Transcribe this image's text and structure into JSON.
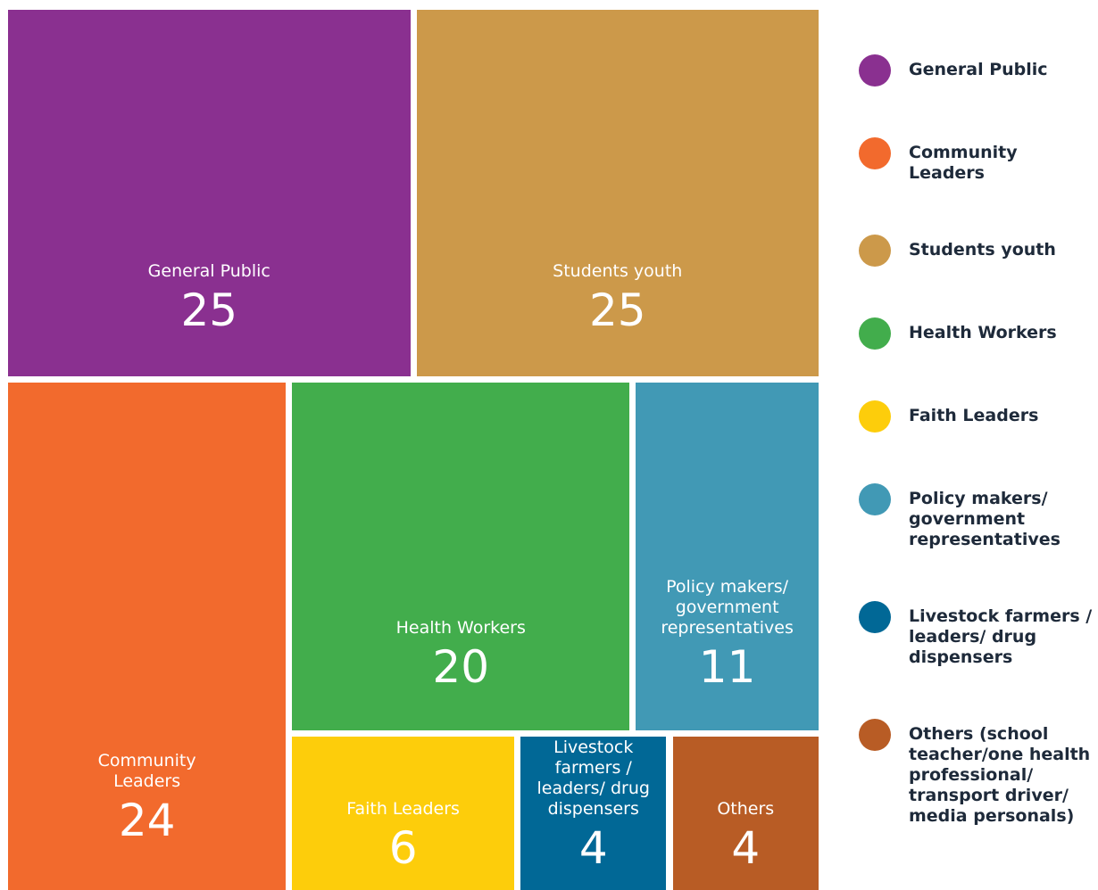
{
  "chart_data": {
    "type": "treemap",
    "labels": [
      "General Public",
      "Community Leaders",
      "Students youth",
      "Health Workers",
      "Faith Leaders",
      "Policy makers/ government representatives",
      "Livestock farmers / leaders/ drug dispensers",
      "Others"
    ],
    "legend_labels": [
      "General Public",
      "Community Leaders",
      "Students youth",
      "Health Workers",
      "Faith Leaders",
      "Policy makers/ government representatives",
      "Livestock farmers / leaders/ drug dispensers",
      "Others (school teacher/one health professional/ transport driver/ media personals)"
    ],
    "values": [
      25,
      24,
      25,
      20,
      6,
      11,
      4,
      4
    ],
    "colors": [
      "#8a3090",
      "#f26a2d",
      "#cc994a",
      "#42ad4c",
      "#fdcd0b",
      "#4199b5",
      "#016896",
      "#b85c25"
    ]
  }
}
